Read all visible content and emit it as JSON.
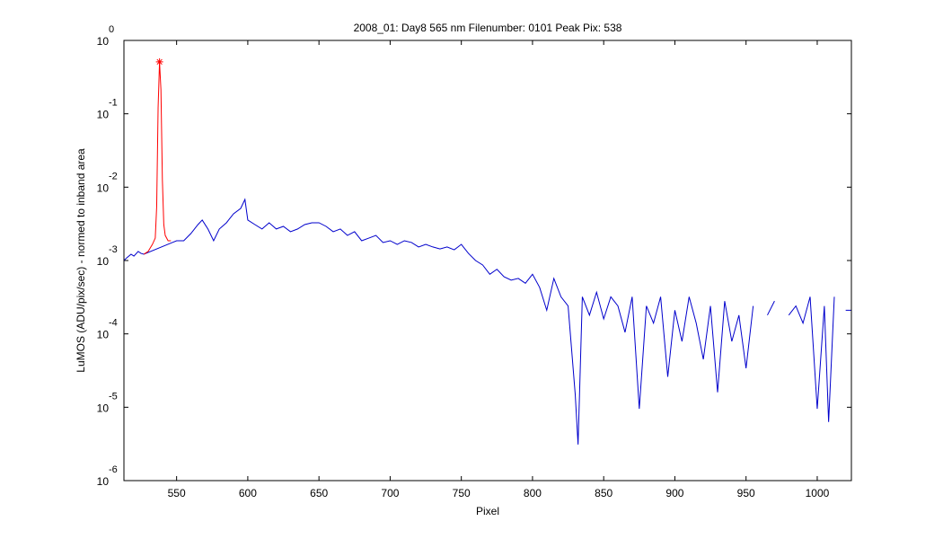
{
  "chart_data": {
    "type": "line",
    "title": "2008_01: Day8  565 nm  Filenumber: 0101 Peak Pix: 538",
    "xlabel": "Pixel",
    "ylabel": "LuMOS (ADU/pix/sec) - normed to inband area",
    "yscale": "log",
    "xlim": [
      513,
      1024
    ],
    "ylim": [
      1e-06,
      1
    ],
    "xticks": [
      550,
      600,
      650,
      700,
      750,
      800,
      850,
      900,
      950,
      1000
    ],
    "yticks": [
      {
        "value": 1,
        "label": "10",
        "exponent": "0"
      },
      {
        "value": 0.1,
        "label": "10",
        "exponent": "-1"
      },
      {
        "value": 0.01,
        "label": "10",
        "exponent": "-2"
      },
      {
        "value": 0.001,
        "label": "10",
        "exponent": "-3"
      },
      {
        "value": 0.0001,
        "label": "10",
        "exponent": "-4"
      },
      {
        "value": 1e-05,
        "label": "10",
        "exponent": "-5"
      },
      {
        "value": 1e-06,
        "label": "10",
        "exponent": "-6"
      }
    ],
    "series": [
      {
        "color": "#0000cc",
        "x": [
          513,
          515,
          518,
          520,
          523,
          525,
          527,
          547,
          550,
          555,
          560,
          565,
          568,
          572,
          576,
          580,
          585,
          590,
          595,
          598,
          600,
          605,
          610,
          615,
          620,
          625,
          630,
          635,
          640,
          645,
          650,
          655,
          660,
          665,
          670,
          675,
          680,
          685,
          690,
          695,
          700,
          705,
          710,
          715,
          720,
          725,
          730,
          735,
          740,
          745,
          750,
          755,
          760,
          765,
          770,
          775,
          780,
          785,
          790,
          795,
          800,
          805,
          810,
          815,
          820,
          825,
          830,
          832,
          835,
          840,
          845,
          850,
          855,
          860,
          865,
          870,
          875,
          880,
          885,
          890,
          895,
          900,
          905,
          910,
          915,
          920,
          925,
          930,
          935,
          940,
          945,
          950,
          955,
          960,
          965,
          970,
          975,
          980,
          985,
          990,
          995,
          1000,
          1005,
          1008,
          1012,
          1015,
          1020,
          1024
        ],
        "values": [
          0.001,
          0.00109,
          0.00122,
          0.00115,
          0.00133,
          0.00125,
          0.00122,
          0.00176,
          0.00186,
          0.00186,
          0.00233,
          0.00309,
          0.00356,
          0.00269,
          0.00186,
          0.00269,
          0.00327,
          0.00434,
          0.00513,
          0.0068,
          0.00356,
          0.00309,
          0.00269,
          0.00327,
          0.00269,
          0.00292,
          0.00247,
          0.00269,
          0.00309,
          0.00327,
          0.00327,
          0.00292,
          0.00247,
          0.00269,
          0.0022,
          0.00247,
          0.00186,
          0.00202,
          0.0022,
          0.00176,
          0.00186,
          0.00166,
          0.00186,
          0.00176,
          0.00153,
          0.00166,
          0.00153,
          0.00144,
          0.00153,
          0.0014,
          0.00166,
          0.00125,
          0.001,
          0.00087,
          0.00065,
          0.00076,
          0.0006,
          0.00054,
          0.00057,
          0.00049,
          0.00065,
          0.00043,
          0.00021,
          0.00057,
          0.00032,
          0.00024,
          1.5e-05,
          3.1e-06,
          0.00032,
          0.00018,
          0.00037,
          0.00016,
          0.00032,
          0.00024,
          0.000105,
          0.00032,
          9.5e-06,
          0.00024,
          0.00014,
          0.00032,
          2.6e-05,
          0.00021,
          7.9e-05,
          0.00032,
          0.00014,
          4.5e-05,
          0.00024,
          1.6e-05,
          0.00028,
          7.9e-05,
          0.00018,
          3.4e-05,
          0.00024,
          null,
          0.00018,
          0.00028,
          null,
          0.00018,
          0.00024,
          0.00014,
          0.00032,
          9.5e-06,
          0.00024,
          6.3e-06,
          0.00032,
          null,
          0.00021,
          0.00021
        ]
      },
      {
        "color": "#ff0000",
        "x": [
          527,
          530,
          533,
          535,
          536,
          537,
          538,
          539,
          540,
          541,
          542,
          544,
          546
        ],
        "values": [
          0.00122,
          0.00133,
          0.00166,
          0.00202,
          0.00543,
          0.121,
          0.51,
          0.212,
          0.0126,
          0.00309,
          0.0022,
          0.00186,
          0.00186
        ]
      }
    ],
    "peak": {
      "x": 538,
      "value": 0.51,
      "color": "#ff0000"
    }
  }
}
